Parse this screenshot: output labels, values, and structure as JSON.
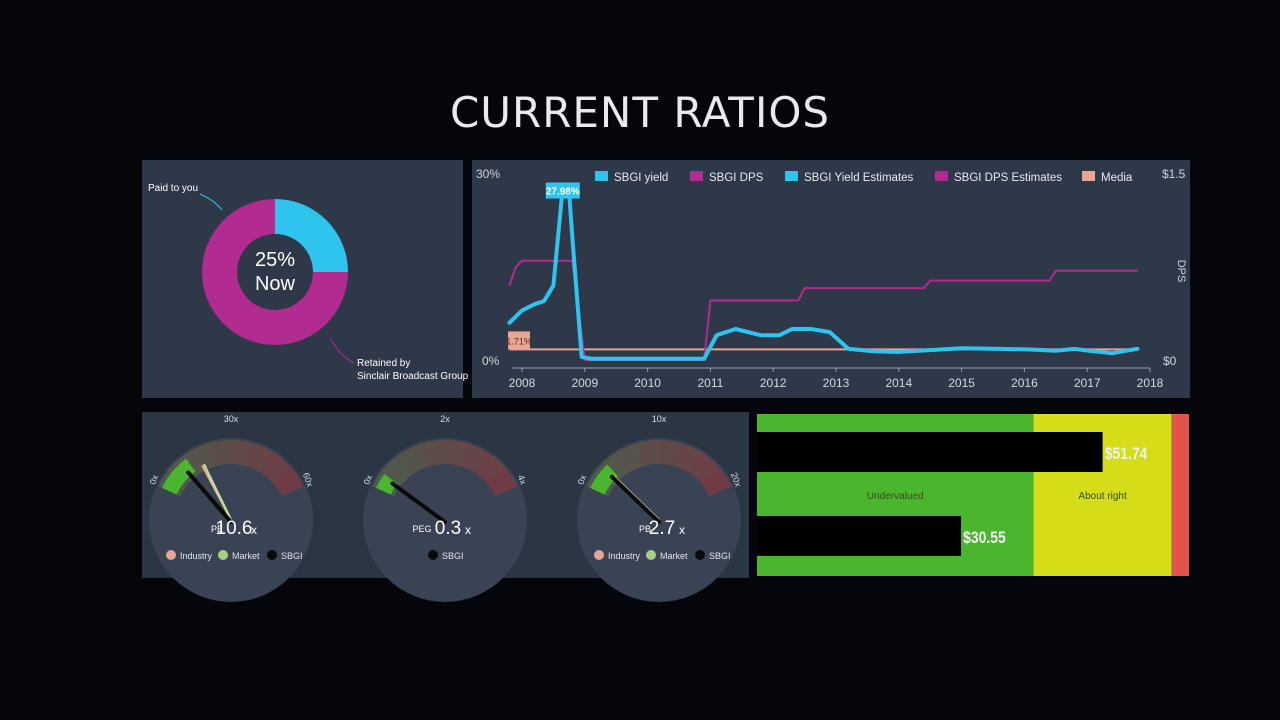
{
  "page": {
    "title": "CURRENT RATIOS"
  },
  "colors": {
    "cyan": "#2ec4ee",
    "magenta": "#b12b90",
    "salmon": "#e9a593",
    "green": "#4bb52e",
    "yellow": "#d4dd17",
    "red": "#e0534e"
  },
  "chart_data": [
    {
      "type": "pie",
      "name": "payout",
      "center_line1": "25%",
      "center_line2": "Now",
      "slices": [
        {
          "label": "Paid to you",
          "value": 25
        },
        {
          "label": "Retained by\nSinclair Broadcast Group",
          "value": 75
        }
      ]
    },
    {
      "type": "line",
      "name": "dividend-history",
      "legend": [
        "SBGI yield",
        "SBGI DPS",
        "SBGI Yield Estimates",
        "SBGI DPS Estimates",
        "Media"
      ],
      "y_left": {
        "label_top": "30%",
        "label_bottom": "0%",
        "range": [
          0,
          30
        ]
      },
      "y_right": {
        "title": "DPS",
        "label_top": "$1.5",
        "label_bottom": "$0",
        "range": [
          0,
          1.5
        ]
      },
      "x_ticks": [
        "2008",
        "2009",
        "2010",
        "2011",
        "2012",
        "2013",
        "2014",
        "2015",
        "2016",
        "2017",
        "2018"
      ],
      "x_range": [
        2008,
        2018
      ],
      "annotations": {
        "peak": "27.98%",
        "media": "1.71%"
      },
      "series": [
        {
          "name": "SBGI yield",
          "points": [
            [
              2007.8,
              6
            ],
            [
              2008.0,
              8
            ],
            [
              2008.2,
              9
            ],
            [
              2008.35,
              9.5
            ],
            [
              2008.5,
              12
            ],
            [
              2008.65,
              27.98
            ],
            [
              2008.75,
              27
            ],
            [
              2008.8,
              20
            ],
            [
              2008.95,
              0.5
            ],
            [
              2009.1,
              0.2
            ],
            [
              2010.9,
              0.2
            ],
            [
              2011.1,
              4
            ],
            [
              2011.4,
              5
            ],
            [
              2011.8,
              4
            ],
            [
              2012.1,
              4
            ],
            [
              2012.3,
              5
            ],
            [
              2012.6,
              5
            ],
            [
              2012.9,
              4.5
            ],
            [
              2013.2,
              1.8
            ],
            [
              2013.6,
              1.4
            ],
            [
              2014.0,
              1.3
            ],
            [
              2014.5,
              1.6
            ],
            [
              2015.0,
              1.9
            ],
            [
              2015.6,
              1.8
            ],
            [
              2016.1,
              1.7
            ],
            [
              2016.5,
              1.5
            ],
            [
              2016.8,
              1.8
            ],
            [
              2017.1,
              1.4
            ],
            [
              2017.4,
              1.1
            ],
            [
              2017.8,
              1.8
            ]
          ]
        },
        {
          "name": "SBGI DPS",
          "points": [
            [
              2007.8,
              0.6
            ],
            [
              2007.9,
              0.75
            ],
            [
              2008.0,
              0.8
            ],
            [
              2008.8,
              0.8
            ],
            [
              2009.0,
              0.0
            ],
            [
              2010.9,
              0.0
            ],
            [
              2011.0,
              0.48
            ],
            [
              2012.4,
              0.48
            ],
            [
              2012.5,
              0.58
            ],
            [
              2014.4,
              0.58
            ],
            [
              2014.5,
              0.64
            ],
            [
              2016.4,
              0.64
            ],
            [
              2016.5,
              0.72
            ],
            [
              2017.8,
              0.72
            ]
          ]
        },
        {
          "name": "Media",
          "points": [
            [
              2007.8,
              1.71
            ],
            [
              2017.8,
              1.71
            ]
          ]
        }
      ]
    },
    {
      "type": "gauge",
      "name": "pe-ratio",
      "metric": "PE",
      "value_text": "10.6",
      "suffix": "x",
      "min_label": "0x",
      "mid_label": "30x",
      "max_label": "60x",
      "max": 60,
      "company": 10.6,
      "industry": 17,
      "market": 18,
      "legend": [
        "Industry",
        "Market",
        "SBGI"
      ]
    },
    {
      "type": "gauge",
      "name": "peg-ratio",
      "metric": "PEG",
      "value_text": "0.3",
      "suffix": "x",
      "min_label": "0x",
      "mid_label": "2x",
      "max_label": "4x",
      "max": 4,
      "company": 0.3,
      "legend": [
        "SBGI"
      ]
    },
    {
      "type": "gauge",
      "name": "pb-ratio",
      "metric": "PB",
      "value_text": "2.7",
      "suffix": "x",
      "min_label": "0x",
      "mid_label": "10x",
      "max_label": "20x",
      "max": 20,
      "company": 2.7,
      "industry": 2.8,
      "market": 2.9,
      "legend": [
        "Industry",
        "Market",
        "SBGI"
      ]
    },
    {
      "type": "bar",
      "name": "valuation",
      "zones": [
        {
          "label": "Undervalued",
          "to": 0.64
        },
        {
          "label": "About right",
          "to": 0.96
        },
        {
          "label": "",
          "to": 1.0
        }
      ],
      "bars": [
        {
          "label": "$51.74",
          "value": 51.74
        },
        {
          "label": "$30.55",
          "value": 30.55
        }
      ]
    }
  ]
}
